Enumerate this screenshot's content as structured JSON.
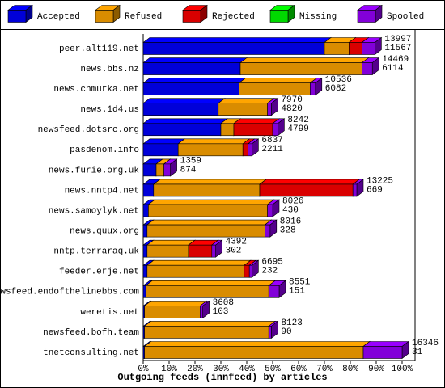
{
  "chart_data": {
    "type": "bar",
    "orientation": "horizontal",
    "stacked": true,
    "x_label": "Outgoing feeds (innfeed) by articles",
    "categories": [
      "peer.alt119.net",
      "news.bbs.nz",
      "news.chmurka.net",
      "news.1d4.us",
      "newsfeed.dotsrc.org",
      "pasdenom.info",
      "news.furie.org.uk",
      "news.nntp4.net",
      "news.samoylyk.net",
      "news.quux.org",
      "nntp.terraraq.uk",
      "feeder.erje.net",
      "newsfeed.endofthelinebbs.com",
      "weretis.net",
      "newsfeed.bofh.team",
      "tnetconsulting.net"
    ],
    "series": [
      {
        "name": "Accepted",
        "color": "#0000ff",
        "values": [
          70,
          37.5,
          37,
          29,
          30,
          13.5,
          5,
          4,
          2,
          1.5,
          1.5,
          1.5,
          1,
          0.5,
          0.5,
          0.5
        ]
      },
      {
        "name": "Refused",
        "color": "#ffa500",
        "values": [
          9.5,
          47,
          27.5,
          19,
          5,
          25,
          3,
          41,
          46,
          45.5,
          16,
          37.5,
          47.5,
          21.5,
          48,
          84.5
        ]
      },
      {
        "name": "Rejected",
        "color": "#ff0000",
        "values": [
          5,
          0,
          0,
          0,
          15,
          2,
          0,
          36,
          0,
          0,
          9,
          2,
          0,
          0,
          0,
          0
        ]
      },
      {
        "name": "Missing",
        "color": "#00ff00",
        "values": [
          0,
          0,
          0,
          0,
          0,
          0,
          0,
          0,
          0,
          0,
          0,
          0,
          0,
          0,
          0,
          0
        ]
      },
      {
        "name": "Spooled",
        "color": "#9900ff",
        "values": [
          5,
          4,
          2,
          1.5,
          2,
          1.5,
          2.5,
          1.5,
          2,
          2,
          1.5,
          1,
          4,
          1,
          1,
          15
        ]
      }
    ],
    "annotations": [
      [
        13997,
        11567
      ],
      [
        14469,
        6114
      ],
      [
        10536,
        6082
      ],
      [
        7970,
        4820
      ],
      [
        8242,
        4799
      ],
      [
        6837,
        2211
      ],
      [
        1359,
        874
      ],
      [
        13225,
        669
      ],
      [
        8026,
        430
      ],
      [
        8016,
        328
      ],
      [
        4392,
        302
      ],
      [
        6695,
        232
      ],
      [
        8551,
        151
      ],
      [
        3608,
        103
      ],
      [
        8123,
        90
      ],
      [
        16346,
        31
      ]
    ],
    "xlim": [
      0,
      100
    ],
    "xticks": [
      {
        "value": 0,
        "label": "0%"
      },
      {
        "value": 10,
        "label": "10%"
      },
      {
        "value": 20,
        "label": "20%"
      },
      {
        "value": 30,
        "label": "30%"
      },
      {
        "value": 40,
        "label": "40%"
      },
      {
        "value": 50,
        "label": "50%"
      },
      {
        "value": 60,
        "label": "60%"
      },
      {
        "value": 70,
        "label": "70%"
      },
      {
        "value": 80,
        "label": "80%"
      },
      {
        "value": 90,
        "label": "90%"
      },
      {
        "value": 100,
        "label": "100%"
      }
    ]
  }
}
